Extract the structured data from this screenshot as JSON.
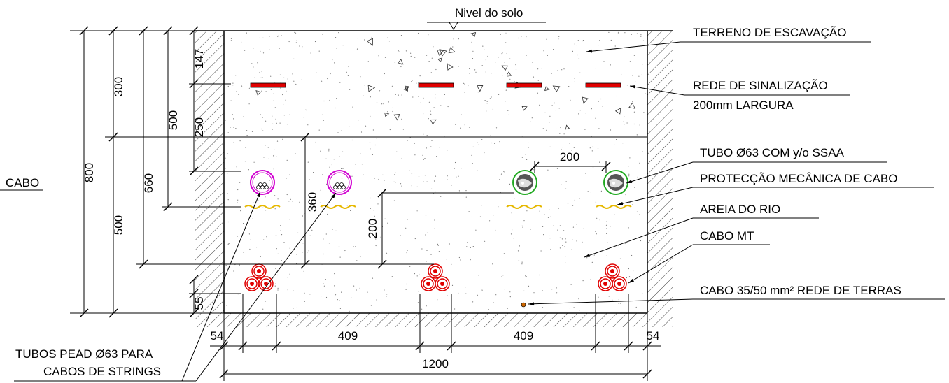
{
  "ground_level": "Nivel do solo",
  "labels": {
    "excavation": "TERRENO DE ESCAVAÇÃO",
    "signal_net_1": "REDE DE SINALIZAÇÃO",
    "signal_net_2": "200mm LARGURA",
    "tube": "TUBO Ø63 COM y/o SSAA",
    "protection": "PROTECÇÃO MECÂNICA DE CABO",
    "sand": "AREIA DO RIO",
    "mv_cable": "CABO MT",
    "earth_cable": "CABO 35/50 mm² REDE DE TERRAS",
    "pead_1": "TUBOS PEAD Ø63 PARA",
    "pead_2": "CABOS DE STRINGS",
    "left_cut": "CABO"
  },
  "dimensions": {
    "d800": "800",
    "d660": "660",
    "d500a": "500",
    "d500b": "500",
    "d300": "300",
    "d147": "147",
    "d250": "250",
    "d55": "55",
    "d360": "360",
    "d200v": "200",
    "d200h": "200",
    "d54l": "54",
    "d409a": "409",
    "d409b": "409",
    "d54r": "54",
    "d1200": "1200"
  },
  "colors": {
    "tape": "#e00000",
    "cable": "#e00000",
    "string_tube": "#d000d0",
    "aux_tube": "#22aa22",
    "protection": "#e6b800",
    "earth_dot": "#cc6600"
  }
}
